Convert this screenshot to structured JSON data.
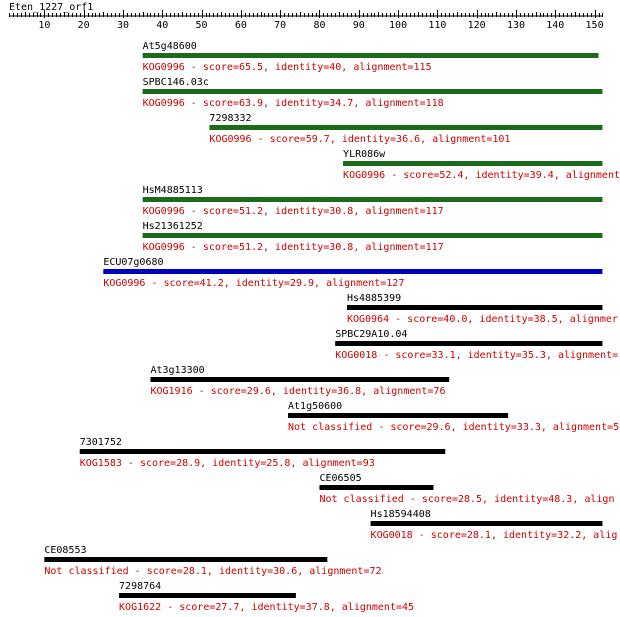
{
  "query": {
    "name": "Eten_1227_orf1"
  },
  "ruler": {
    "start": 1,
    "end": 152,
    "tick_labels": [
      10,
      20,
      30,
      40,
      50,
      60,
      70,
      80,
      90,
      100,
      110,
      120,
      130,
      140,
      150
    ]
  },
  "colors": {
    "ruler": "#000000",
    "hit_text": "#cc0000",
    "green_bar": "#1a6b1a",
    "blue_bar": "#0000bb",
    "black_bar": "#000000"
  },
  "hits": [
    {
      "name": "At5g48600",
      "start": 35,
      "end": 151,
      "color": "green",
      "description": "KOG0996 - score=65.5, identity=40, alignment=115"
    },
    {
      "name": "SPBC146.03c",
      "start": 35,
      "end": 152,
      "color": "green",
      "description": "KOG0996 - score=63.9, identity=34.7, alignment=118"
    },
    {
      "name": "7298332",
      "start": 52,
      "end": 152,
      "color": "green",
      "description": "KOG0996 - score=59.7, identity=36.6, alignment=101"
    },
    {
      "name": "YLR086w",
      "start": 86,
      "end": 152,
      "color": "green",
      "description": "KOG0996 - score=52.4, identity=39.4, alignment="
    },
    {
      "name": "HsM4885113",
      "start": 35,
      "end": 152,
      "color": "green",
      "description": "KOG0996 - score=51.2, identity=30.8, alignment=117"
    },
    {
      "name": "Hs21361252",
      "start": 35,
      "end": 152,
      "color": "green",
      "description": "KOG0996 - score=51.2, identity=30.8, alignment=117"
    },
    {
      "name": "ECU07g0680",
      "start": 25,
      "end": 152,
      "color": "blue",
      "description": "KOG0996 - score=41.2, identity=29.9, alignment=127"
    },
    {
      "name": "Hs4885399",
      "start": 87,
      "end": 152,
      "color": "black",
      "description": "KOG0964 - score=40.0, identity=38.5, alignmer"
    },
    {
      "name": "SPBC29A10.04",
      "start": 84,
      "end": 152,
      "color": "black",
      "description": "KOG0018 - score=33.1, identity=35.3, alignment="
    },
    {
      "name": "At3g13300",
      "start": 37,
      "end": 113,
      "color": "black",
      "description": "KOG1916 - score=29.6, identity=36.8, alignment=76"
    },
    {
      "name": "At1g50600",
      "start": 72,
      "end": 128,
      "color": "black",
      "description": "Not classified - score=29.6, identity=33.3, alignment=5"
    },
    {
      "name": "7301752",
      "start": 19,
      "end": 112,
      "color": "black",
      "description": "KOG1583 - score=28.9, identity=25.8, alignment=93"
    },
    {
      "name": "CE06505",
      "start": 80,
      "end": 109,
      "color": "black",
      "description": "Not classified - score=28.5, identity=48.3, align"
    },
    {
      "name": "Hs18594408",
      "start": 93,
      "end": 152,
      "color": "black",
      "description": "KOG0018 - score=28.1, identity=32.2, alig"
    },
    {
      "name": "CE08553",
      "start": 10,
      "end": 82,
      "color": "black",
      "description": "Not classified - score=28.1, identity=30.6, alignment=72"
    },
    {
      "name": "7298764",
      "start": 29,
      "end": 74,
      "color": "black",
      "description": "KOG1622 - score=27.7, identity=37.8, alignment=45"
    }
  ]
}
